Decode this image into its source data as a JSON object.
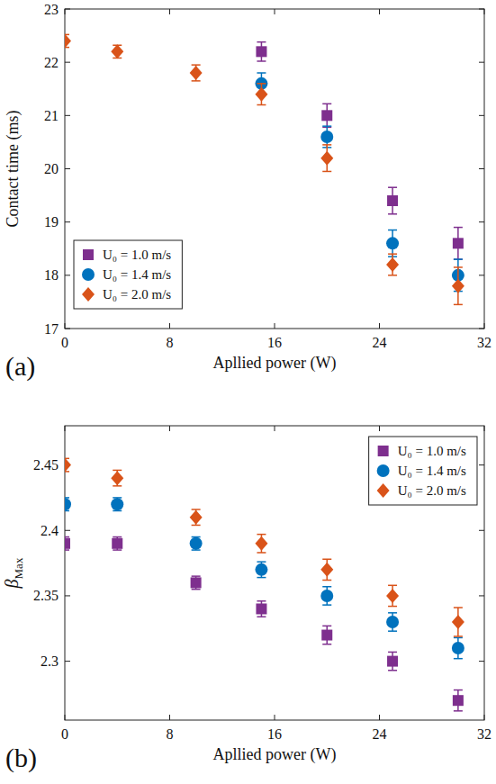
{
  "chart_data": [
    {
      "type": "scatter",
      "panel_label": "(a)",
      "xlabel": "Apllied power (W)",
      "ylabel": "Contact time (ms)",
      "x": [
        0,
        4,
        10,
        15,
        20,
        25,
        30
      ],
      "xlim": [
        0,
        32
      ],
      "xticks": [
        0,
        8,
        16,
        24,
        32
      ],
      "ylim": [
        17,
        23
      ],
      "yticks": [
        17,
        18,
        19,
        20,
        21,
        22,
        23
      ],
      "grid": false,
      "legend": "lower left",
      "series": [
        {
          "name": "U₀ = 1.0 m/s",
          "color": "#7E2F8E",
          "marker": "square",
          "values": [
            null,
            null,
            null,
            22.2,
            21.0,
            19.4,
            18.6
          ],
          "errors": [
            null,
            null,
            null,
            0.18,
            0.22,
            0.25,
            0.3
          ]
        },
        {
          "name": "U₀ = 1.4 m/s",
          "color": "#0072BD",
          "marker": "circle",
          "values": [
            null,
            null,
            null,
            21.6,
            20.6,
            18.6,
            18.0
          ],
          "errors": [
            null,
            null,
            null,
            0.2,
            0.2,
            0.25,
            0.3
          ]
        },
        {
          "name": "U₀ = 2.0 m/s",
          "color": "#D95319",
          "marker": "diamond",
          "values": [
            22.4,
            22.2,
            21.8,
            21.4,
            20.2,
            18.2,
            17.8
          ],
          "errors": [
            0.12,
            0.12,
            0.15,
            0.2,
            0.25,
            0.2,
            0.35
          ]
        }
      ]
    },
    {
      "type": "scatter",
      "panel_label": "(b)",
      "xlabel": "Apllied power (W)",
      "ylabel": "βMax",
      "x": [
        0,
        4,
        10,
        15,
        20,
        25,
        30
      ],
      "xlim": [
        0,
        32
      ],
      "xticks": [
        0,
        8,
        16,
        24,
        32
      ],
      "ylim": [
        2.255,
        2.48
      ],
      "yticks": [
        2.3,
        2.35,
        2.4,
        2.45
      ],
      "grid": false,
      "legend": "upper right",
      "series": [
        {
          "name": "U₀ = 1.0 m/s",
          "color": "#7E2F8E",
          "marker": "square",
          "values": [
            2.39,
            2.39,
            2.36,
            2.34,
            2.32,
            2.3,
            2.27
          ],
          "errors": [
            0.005,
            0.005,
            0.005,
            0.006,
            0.007,
            0.007,
            0.008
          ]
        },
        {
          "name": "U₀ = 1.4 m/s",
          "color": "#0072BD",
          "marker": "circle",
          "values": [
            2.42,
            2.42,
            2.39,
            2.37,
            2.35,
            2.33,
            2.31
          ],
          "errors": [
            0.005,
            0.005,
            0.005,
            0.006,
            0.007,
            0.007,
            0.008
          ]
        },
        {
          "name": "U₀ = 2.0 m/s",
          "color": "#D95319",
          "marker": "diamond",
          "values": [
            2.45,
            2.44,
            2.41,
            2.39,
            2.37,
            2.35,
            2.33
          ],
          "errors": [
            0.005,
            0.006,
            0.006,
            0.007,
            0.008,
            0.008,
            0.011
          ]
        }
      ]
    }
  ]
}
